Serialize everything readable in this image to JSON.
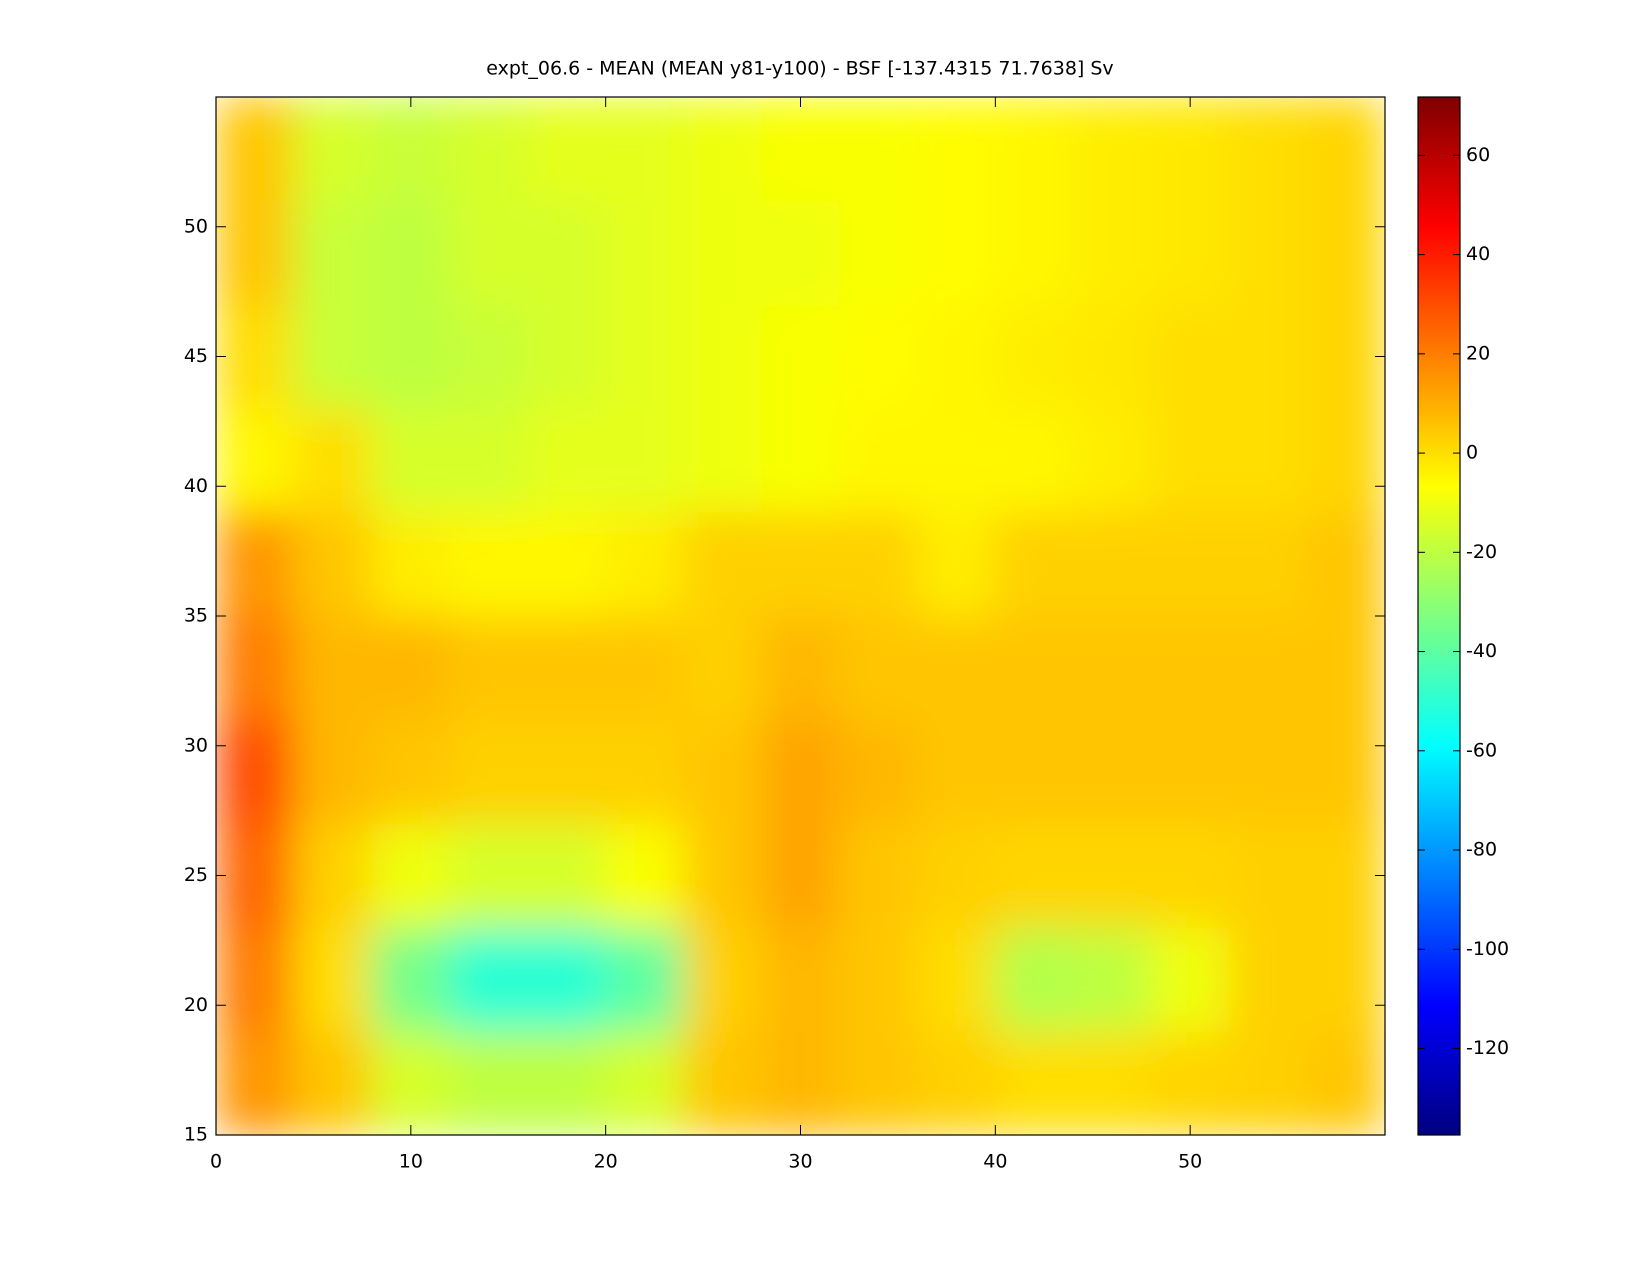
{
  "chart_data": {
    "type": "heatmap",
    "title": "expt_06.6 - MEAN (MEAN y81-y100) - BSF [-137.4315 71.7638] Sv",
    "x": [
      2,
      6,
      10,
      14,
      18,
      22,
      26,
      30,
      34,
      38,
      42,
      46,
      50,
      54,
      58
    ],
    "y": [
      17,
      21,
      25,
      29,
      33,
      37,
      41,
      45,
      49,
      53
    ],
    "z": [
      [
        15,
        5,
        -15,
        -20,
        -20,
        -15,
        5,
        8,
        5,
        3,
        0,
        0,
        2,
        3,
        5
      ],
      [
        20,
        0,
        -35,
        -50,
        -50,
        -40,
        3,
        8,
        5,
        0,
        -22,
        -20,
        -10,
        3,
        3
      ],
      [
        25,
        3,
        -10,
        -15,
        -15,
        -8,
        5,
        12,
        5,
        3,
        2,
        2,
        2,
        3,
        3
      ],
      [
        30,
        8,
        5,
        3,
        3,
        3,
        5,
        12,
        8,
        5,
        5,
        5,
        5,
        5,
        5
      ],
      [
        20,
        8,
        8,
        5,
        5,
        5,
        3,
        8,
        5,
        5,
        5,
        5,
        5,
        5,
        5
      ],
      [
        15,
        5,
        -3,
        -5,
        -5,
        -3,
        3,
        3,
        3,
        -3,
        3,
        3,
        3,
        3,
        5
      ],
      [
        -5,
        0,
        -15,
        -15,
        -12,
        -12,
        -10,
        -8,
        -5,
        -5,
        -5,
        -3,
        0,
        0,
        2
      ],
      [
        0,
        -18,
        -20,
        -18,
        -15,
        -12,
        -10,
        -8,
        -6,
        -5,
        -3,
        -2,
        0,
        0,
        2
      ],
      [
        5,
        -18,
        -20,
        -15,
        -15,
        -12,
        -10,
        -10,
        -8,
        -6,
        -5,
        -3,
        -2,
        0,
        2
      ],
      [
        5,
        -15,
        -18,
        -15,
        -12,
        -12,
        -10,
        -8,
        -8,
        -6,
        -5,
        -3,
        -2,
        0,
        2
      ]
    ],
    "xlim": [
      0,
      60
    ],
    "xticks": [
      0,
      10,
      20,
      30,
      40,
      50
    ],
    "ylim": [
      15,
      55
    ],
    "yticks": [
      15,
      20,
      25,
      30,
      35,
      40,
      45,
      50
    ],
    "clim": [
      -137.4315,
      71.7638
    ],
    "cticks": [
      -120,
      -100,
      -80,
      -60,
      -40,
      -20,
      0,
      20,
      40,
      60
    ],
    "colormap": "jet"
  }
}
